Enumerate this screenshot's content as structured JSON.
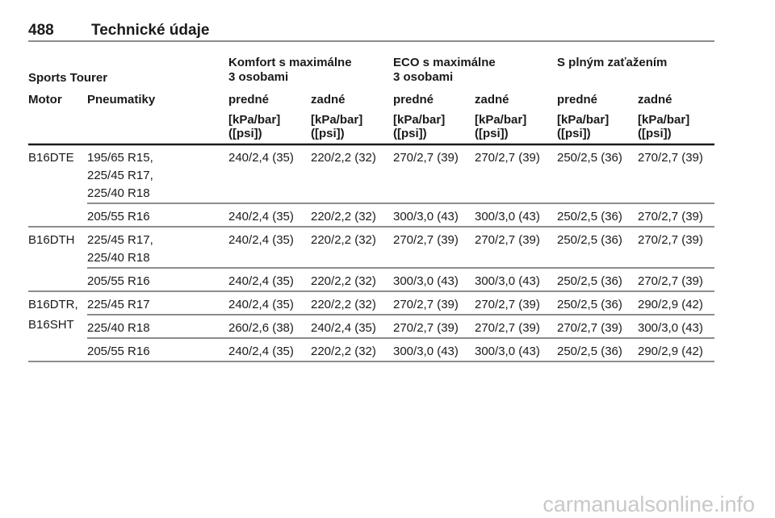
{
  "header": {
    "page": "488",
    "title": "Technické údaje"
  },
  "table": {
    "caption": "Sports Tourer",
    "groups": [
      "Komfort s maximálne\n3 osobami",
      "ECO s maximálne\n3 osobami",
      "S plným zaťažením"
    ],
    "columns": [
      "Motor",
      "Pneumatiky",
      "predné",
      "zadné",
      "predné",
      "zadné",
      "predné",
      "zadné"
    ],
    "unit": "[kPa/bar]\n([psi])",
    "engines": [
      {
        "motor": [
          "B16DTE"
        ],
        "rows": [
          {
            "tires": [
              "195/65 R15,",
              "225/45 R17,",
              "225/40 R18"
            ],
            "values": [
              "240/2,4 (35)",
              "220/2,2 (32)",
              "270/2,7 (39)",
              "270/2,7 (39)",
              "250/2,5 (36)",
              "270/2,7 (39)"
            ]
          },
          {
            "tires": [
              "205/55 R16"
            ],
            "values": [
              "240/2,4 (35)",
              "220/2,2 (32)",
              "300/3,0 (43)",
              "300/3,0 (43)",
              "250/2,5 (36)",
              "270/2,7 (39)"
            ]
          }
        ]
      },
      {
        "motor": [
          "B16DTH"
        ],
        "rows": [
          {
            "tires": [
              "225/45 R17,",
              "225/40 R18"
            ],
            "values": [
              "240/2,4 (35)",
              "220/2,2 (32)",
              "270/2,7 (39)",
              "270/2,7 (39)",
              "250/2,5 (36)",
              "270/2,7 (39)"
            ]
          },
          {
            "tires": [
              "205/55 R16"
            ],
            "values": [
              "240/2,4 (35)",
              "220/2,2 (32)",
              "300/3,0 (43)",
              "300/3,0 (43)",
              "250/2,5 (36)",
              "270/2,7 (39)"
            ]
          }
        ]
      },
      {
        "motor": [
          "B16DTR,",
          "B16SHT"
        ],
        "rows": [
          {
            "tires": [
              "225/45 R17"
            ],
            "values": [
              "240/2,4 (35)",
              "220/2,2 (32)",
              "270/2,7 (39)",
              "270/2,7 (39)",
              "250/2,5 (36)",
              "290/2,9 (42)"
            ]
          },
          {
            "tires": [
              "225/40 R18"
            ],
            "values": [
              "260/2,6 (38)",
              "240/2,4 (35)",
              "270/2,7 (39)",
              "270/2,7 (39)",
              "270/2,7 (39)",
              "300/3,0 (43)"
            ]
          },
          {
            "tires": [
              "205/55 R16"
            ],
            "values": [
              "240/2,4 (35)",
              "220/2,2 (32)",
              "300/3,0 (43)",
              "300/3,0 (43)",
              "250/2,5 (36)",
              "290/2,9 (42)"
            ]
          }
        ]
      }
    ]
  },
  "watermark": "carmanualsonline.info"
}
